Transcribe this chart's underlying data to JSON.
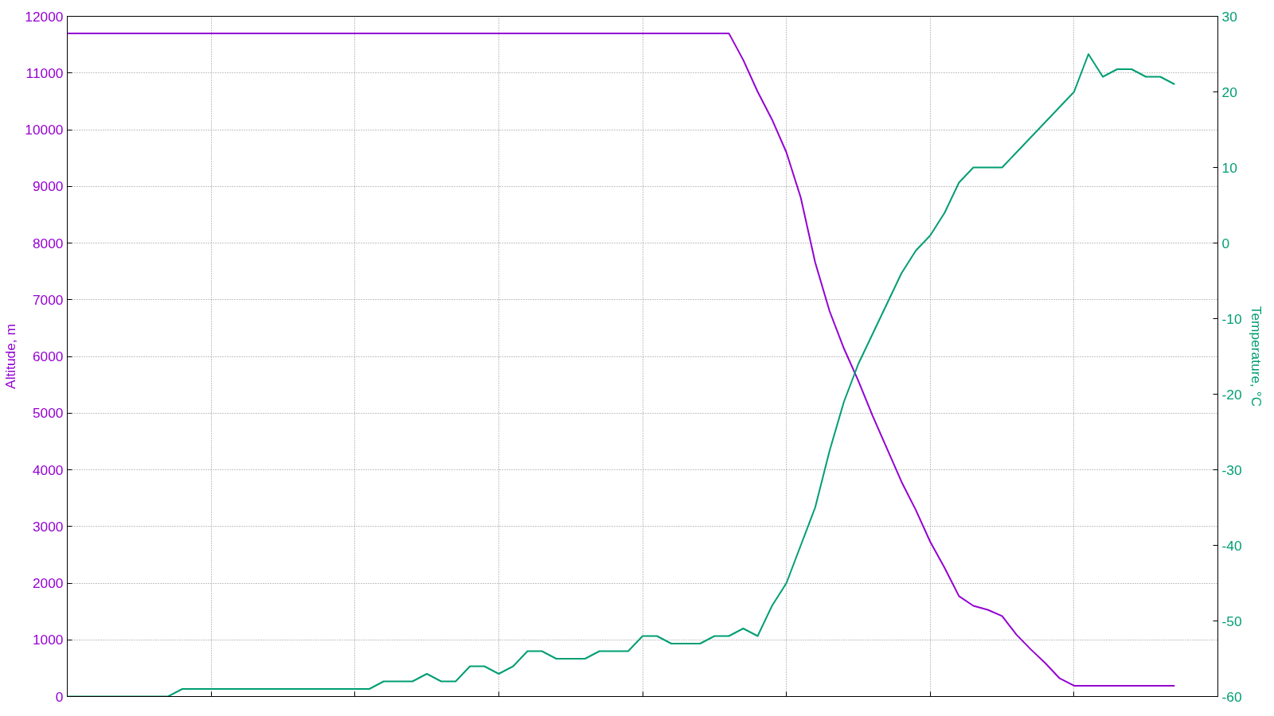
{
  "chart_data": {
    "type": "line",
    "ylabel": "Altitude, m",
    "y2label": "Temperature, °C",
    "categories": [
      null,
      null,
      null,
      null,
      null,
      null,
      null,
      null,
      null,
      null,
      null,
      null,
      null,
      null,
      null,
      null,
      null,
      null,
      null,
      null,
      null,
      null,
      null,
      null,
      null,
      null,
      null,
      null,
      null,
      null,
      null,
      null,
      null,
      null,
      null,
      null,
      null,
      null,
      null,
      null,
      null,
      null,
      null,
      null,
      null,
      null,
      null,
      null,
      null,
      null,
      null,
      null,
      null,
      null,
      null,
      null,
      null,
      null,
      null,
      null,
      null,
      null,
      null,
      null,
      null,
      null,
      null,
      null,
      null,
      null,
      null,
      null,
      null,
      null,
      null,
      null,
      null,
      null
    ],
    "ylim": [
      0,
      12000
    ],
    "yticks": [
      0,
      1000,
      2000,
      3000,
      4000,
      5000,
      6000,
      7000,
      8000,
      9000,
      10000,
      11000,
      12000
    ],
    "y2lim": [
      -60,
      30
    ],
    "y2ticks": [
      -60,
      -50,
      -40,
      -30,
      -20,
      -10,
      0,
      10,
      20,
      30
    ],
    "tick_labels": "y",
    "grid": true,
    "line_style": "solid",
    "series": [
      {
        "color": "#9400d3",
        "values": [
          11700,
          11700,
          11700,
          11700,
          11700,
          11700,
          11700,
          11700,
          11700,
          11700,
          11700,
          11700,
          11700,
          11700,
          11700,
          11700,
          11700,
          11700,
          11700,
          11700,
          11700,
          11700,
          11700,
          11700,
          11700,
          11700,
          11700,
          11700,
          11700,
          11700,
          11700,
          11700,
          11700,
          11700,
          11700,
          11700,
          11700,
          11700,
          11700,
          11700,
          11700,
          11700,
          11700,
          11700,
          11700,
          11700,
          11700,
          11230,
          10670,
          10180,
          9600,
          8800,
          7660,
          6800,
          6140,
          5570,
          4950,
          4370,
          3790,
          3290,
          2730,
          2270,
          1770,
          1600,
          1530,
          1420,
          1090,
          830,
          590,
          320,
          190,
          190,
          190,
          190,
          190,
          190,
          190,
          190
        ]
      },
      {
        "color": "#009e73",
        "axis": "y2",
        "values": [
          -60,
          -60,
          -60,
          -60,
          -60,
          -60,
          -60,
          -60,
          -59,
          -59,
          -59,
          -59,
          -59,
          -59,
          -59,
          -59,
          -59,
          -59,
          -59,
          -59,
          -59,
          -59,
          -58,
          -58,
          -58,
          -57,
          -58,
          -58,
          -56,
          -56,
          -57,
          -56,
          -54,
          -54,
          -55,
          -55,
          -55,
          -54,
          -54,
          -54,
          -52,
          -52,
          -53,
          -53,
          -53,
          -52,
          -52,
          -51,
          -52,
          -48,
          -45,
          -40,
          -35,
          -27.5,
          -21,
          -16,
          -12,
          -8,
          -4,
          -1,
          1,
          4,
          8,
          10,
          10,
          10,
          12,
          14,
          16,
          18,
          20,
          25,
          22,
          23,
          23,
          22,
          22,
          21
        ]
      }
    ]
  }
}
